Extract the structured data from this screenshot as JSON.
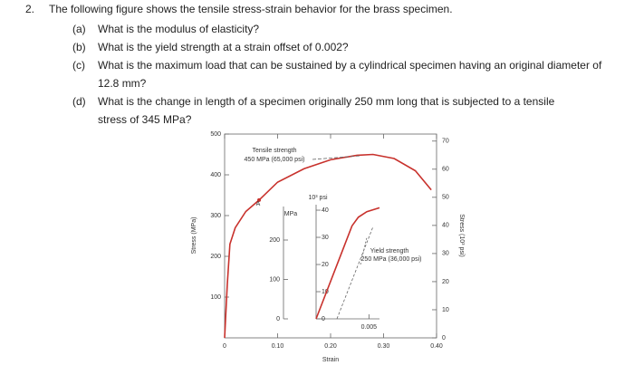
{
  "question": {
    "number": "2.",
    "text": "The following figure shows the tensile stress-strain behavior for the brass specimen."
  },
  "parts": [
    {
      "label": "(a)",
      "text": "What is the modulus of elasticity?"
    },
    {
      "label": "(b)",
      "text": "What is the yield strength at a strain offset of 0.002?"
    },
    {
      "label": "(c)",
      "text": "What is the maximum load that can be sustained by a cylindrical specimen having an original diameter of 12.8 mm?"
    },
    {
      "label": "(d)",
      "text": "What is the change in length of a specimen originally 250 mm long that is subjected to a tensile stress of 345 MPa?"
    }
  ],
  "chart_data": [
    {
      "type": "line",
      "xlabel": "Strain",
      "ylabel": "Stress (MPa)",
      "y2label": "Stress (10³ psi)",
      "xlim": [
        0,
        0.4
      ],
      "xticks": [
        0,
        {
          "value": 0.1,
          "label": "0.10"
        },
        {
          "value": 0.2,
          "label": "0.20"
        },
        {
          "value": 0.3,
          "label": "0.30"
        },
        {
          "value": 0.4,
          "label": "0.40"
        }
      ],
      "ylim": [
        0,
        500
      ],
      "yticks": [
        100,
        200,
        300,
        400,
        500
      ],
      "y2lim": [
        0,
        72.5
      ],
      "y2ticks": [
        0,
        10,
        20,
        30,
        40,
        50,
        60,
        70
      ],
      "x": [
        0,
        0.005,
        0.01,
        0.02,
        0.04,
        0.065,
        0.1,
        0.15,
        0.2,
        0.25,
        0.28,
        0.32,
        0.36,
        0.39
      ],
      "series": [
        {
          "color": "#c8312c",
          "values": [
            0,
            130,
            230,
            270,
            310,
            338,
            382,
            415,
            437,
            448,
            450,
            440,
            410,
            363
          ]
        }
      ],
      "annotations": [
        "Tensile strength",
        "450 MPa (65,000 psi)",
        "A"
      ]
    },
    {
      "type": "line",
      "ylabel": "MPa",
      "y2label": "10³ psi",
      "xlim": [
        0,
        0.006
      ],
      "xticks": [
        0.005
      ],
      "ylim": [
        0,
        300
      ],
      "yticks": [
        0,
        100,
        200
      ],
      "y2lim": [
        0,
        43.51
      ],
      "y2ticks": [
        0,
        10,
        20,
        30,
        40
      ],
      "x": [
        0,
        0.0034,
        0.004,
        0.0048,
        0.006
      ],
      "series": [
        {
          "color": "#c8312c",
          "values": [
            0,
            236,
            258,
            272,
            282
          ]
        }
      ],
      "annotations": [
        "Yield strength",
        "250 MPa (36,000 psi)"
      ]
    }
  ]
}
